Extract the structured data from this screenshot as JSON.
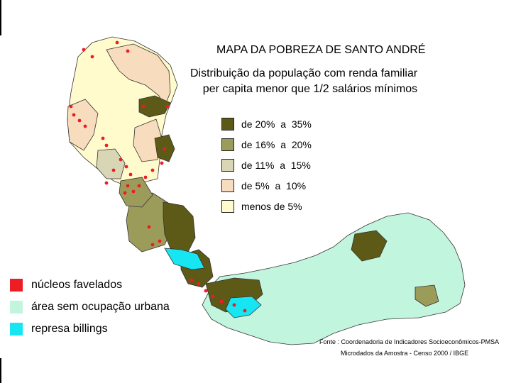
{
  "title": "MAPA DA POBREZA DE SANTO ANDRÉ",
  "subtitle_lines": [
    "Distribuição da população com renda familiar",
    "per capita menor que 1/2 salários mínimos"
  ],
  "legend": [
    {
      "label": "de 20%  a  35%",
      "color": "#5c5a16"
    },
    {
      "label": "de 16%  a  20%",
      "color": "#9c9c5a"
    },
    {
      "label": "de 11%  a  15%",
      "color": "#d9d6b5"
    },
    {
      "label": "de 5%  a  10%",
      "color": "#f7dcbe"
    },
    {
      "label": "menos de 5%",
      "color": "#fffbcc"
    }
  ],
  "legend_other": [
    {
      "label": "núcleos favelados",
      "color": "#ee1c24"
    },
    {
      "label": "área sem ocupação urbana",
      "color": "#c2f5de"
    },
    {
      "label": "represa billings",
      "color": "#16e6f2"
    }
  ],
  "source_lines": [
    "Fonte : Coordenadoria de Indicadores Socioeconômicos-PMSA",
    "Microdados da Amostra - Censo 2000 / IBGE"
  ],
  "region_colors": {
    "darkest": "#5c5a16",
    "dark_olive": "#9c9c5a",
    "light_gray": "#d9d6b5",
    "peach": "#f7dcbe",
    "light_yellow": "#fffbcc",
    "favela_red": "#ee1c24",
    "no_urban": "#c2f5de",
    "reservoir": "#16e6f2",
    "border": "#333333"
  }
}
